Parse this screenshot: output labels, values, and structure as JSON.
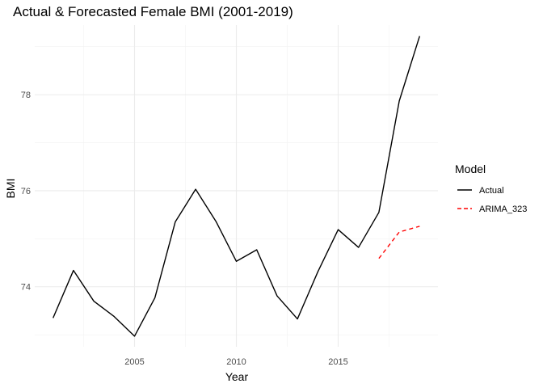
{
  "chart_data": {
    "type": "line",
    "title": "Actual & Forecasted Female BMI (2001-2019)",
    "xlabel": "Year",
    "ylabel": "BMI",
    "xlim": [
      2000.1,
      2019.9
    ],
    "ylim": [
      72.75,
      79.45
    ],
    "x_ticks": [
      2005,
      2010,
      2015
    ],
    "y_ticks": [
      74,
      76,
      78
    ],
    "grid": true,
    "legend": {
      "title": "Model",
      "position": "right"
    },
    "series": [
      {
        "name": "Actual",
        "color": "#000000",
        "linetype": "solid",
        "x": [
          2001,
          2002,
          2003,
          2004,
          2005,
          2006,
          2007,
          2008,
          2009,
          2010,
          2011,
          2012,
          2013,
          2014,
          2015,
          2016,
          2017,
          2018,
          2019
        ],
        "values": [
          73.35,
          74.34,
          73.7,
          73.38,
          72.97,
          73.77,
          75.35,
          76.03,
          75.36,
          74.53,
          74.77,
          73.81,
          73.33,
          74.31,
          75.19,
          74.82,
          75.55,
          77.87,
          79.22
        ]
      },
      {
        "name": "ARIMA_323",
        "color": "#ff0000",
        "linetype": "dashed",
        "x": [
          2017,
          2018,
          2019
        ],
        "values": [
          74.59,
          75.14,
          75.26
        ]
      }
    ]
  }
}
